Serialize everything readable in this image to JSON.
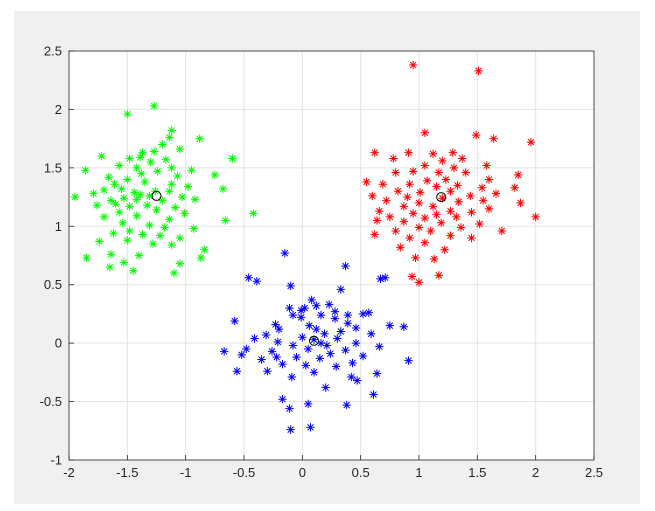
{
  "chart_data": {
    "type": "scatter",
    "title": "",
    "xlabel": "",
    "ylabel": "",
    "xlim": [
      -2,
      2.5
    ],
    "ylim": [
      -1,
      2.5
    ],
    "xticks": [
      "-2",
      "-1.5",
      "-1",
      "-0.5",
      "0",
      "0.5",
      "1",
      "1.5",
      "2",
      "2.5"
    ],
    "yticks": [
      "-1",
      "-0.5",
      "0",
      "0.5",
      "1",
      "1.5",
      "2",
      "2.5"
    ],
    "grid": true,
    "legend": "none",
    "series": [
      {
        "color": "#00ff00",
        "marker": "asterisk",
        "points": [
          [
            -1.27,
            2.03
          ],
          [
            -1.5,
            1.96
          ],
          [
            -1.12,
            1.82
          ],
          [
            -1.14,
            1.76
          ],
          [
            -0.88,
            1.75
          ],
          [
            -1.2,
            1.7
          ],
          [
            -1.05,
            1.66
          ],
          [
            -1.27,
            1.64
          ],
          [
            -1.37,
            1.63
          ],
          [
            -1.39,
            1.59
          ],
          [
            -1.72,
            1.6
          ],
          [
            -1.48,
            1.58
          ],
          [
            -1.17,
            1.57
          ],
          [
            -1.3,
            1.55
          ],
          [
            -0.6,
            1.58
          ],
          [
            -1.57,
            1.52
          ],
          [
            -1.86,
            1.48
          ],
          [
            -1.42,
            1.5
          ],
          [
            -1.12,
            1.5
          ],
          [
            -0.95,
            1.48
          ],
          [
            -1.24,
            1.47
          ],
          [
            -1.38,
            1.45
          ],
          [
            -1.07,
            1.43
          ],
          [
            -0.75,
            1.44
          ],
          [
            -1.66,
            1.42
          ],
          [
            -1.5,
            1.4
          ],
          [
            -1.61,
            1.36
          ],
          [
            -1.35,
            1.38
          ],
          [
            -1.12,
            1.36
          ],
          [
            -0.98,
            1.34
          ],
          [
            -1.55,
            1.32
          ],
          [
            -1.7,
            1.31
          ],
          [
            -1.26,
            1.3
          ],
          [
            -1.44,
            1.29
          ],
          [
            -1.14,
            1.3
          ],
          [
            -0.68,
            1.32
          ],
          [
            -1.79,
            1.28
          ],
          [
            -1.39,
            1.27
          ],
          [
            -1.31,
            1.26
          ],
          [
            -1.03,
            1.25
          ],
          [
            -1.53,
            1.24
          ],
          [
            -1.64,
            1.22
          ],
          [
            -1.42,
            1.23
          ],
          [
            -1.2,
            1.22
          ],
          [
            -0.92,
            1.23
          ],
          [
            -1.95,
            1.25
          ],
          [
            -1.76,
            1.18
          ],
          [
            -1.6,
            1.19
          ],
          [
            -1.48,
            1.17
          ],
          [
            -1.33,
            1.18
          ],
          [
            -1.09,
            1.16
          ],
          [
            -1.25,
            1.14
          ],
          [
            -1.57,
            1.12
          ],
          [
            -1.01,
            1.11
          ],
          [
            -1.42,
            1.09
          ],
          [
            -1.7,
            1.08
          ],
          [
            -1.14,
            1.06
          ],
          [
            -0.42,
            1.11
          ],
          [
            -0.66,
            1.05
          ],
          [
            -1.54,
            1.03
          ],
          [
            -1.31,
            1.01
          ],
          [
            -1.18,
            0.99
          ],
          [
            -1.48,
            0.96
          ],
          [
            -0.93,
            0.98
          ],
          [
            -1.62,
            0.94
          ],
          [
            -1.37,
            0.93
          ],
          [
            -1.22,
            0.92
          ],
          [
            -1.05,
            0.9
          ],
          [
            -1.74,
            0.87
          ],
          [
            -1.5,
            0.88
          ],
          [
            -1.28,
            0.85
          ],
          [
            -1.12,
            0.84
          ],
          [
            -0.84,
            0.8
          ],
          [
            -1.64,
            0.76
          ],
          [
            -1.4,
            0.75
          ],
          [
            -0.87,
            0.73
          ],
          [
            -1.85,
            0.73
          ],
          [
            -1.53,
            0.69
          ],
          [
            -1.65,
            0.65
          ],
          [
            -1.1,
            0.6
          ],
          [
            -1.05,
            0.68
          ],
          [
            -1.45,
            0.62
          ]
        ]
      },
      {
        "color": "#ff0000",
        "marker": "asterisk",
        "points": [
          [
            0.95,
            2.38
          ],
          [
            1.51,
            2.33
          ],
          [
            1.05,
            1.8
          ],
          [
            1.49,
            1.78
          ],
          [
            1.64,
            1.75
          ],
          [
            1.96,
            1.72
          ],
          [
            0.62,
            1.63
          ],
          [
            0.91,
            1.63
          ],
          [
            1.12,
            1.62
          ],
          [
            1.29,
            1.63
          ],
          [
            0.78,
            1.58
          ],
          [
            1.2,
            1.56
          ],
          [
            1.37,
            1.58
          ],
          [
            1.05,
            1.52
          ],
          [
            1.58,
            1.52
          ],
          [
            1.3,
            1.5
          ],
          [
            0.8,
            1.46
          ],
          [
            0.95,
            1.47
          ],
          [
            1.17,
            1.46
          ],
          [
            1.4,
            1.46
          ],
          [
            1.85,
            1.44
          ],
          [
            0.55,
            1.38
          ],
          [
            1.07,
            1.39
          ],
          [
            1.23,
            1.4
          ],
          [
            1.6,
            1.4
          ],
          [
            0.69,
            1.36
          ],
          [
            0.92,
            1.36
          ],
          [
            1.33,
            1.35
          ],
          [
            1.54,
            1.33
          ],
          [
            1.15,
            1.34
          ],
          [
            1.82,
            1.33
          ],
          [
            0.82,
            1.3
          ],
          [
            1.01,
            1.29
          ],
          [
            1.27,
            1.3
          ],
          [
            1.66,
            1.28
          ],
          [
            0.6,
            1.26
          ],
          [
            0.9,
            1.25
          ],
          [
            1.44,
            1.26
          ],
          [
            1.2,
            1.24
          ],
          [
            1.55,
            1.22
          ],
          [
            0.72,
            1.22
          ],
          [
            1.0,
            1.2
          ],
          [
            1.34,
            1.21
          ],
          [
            1.87,
            1.2
          ],
          [
            0.87,
            1.17
          ],
          [
            1.12,
            1.17
          ],
          [
            1.6,
            1.15
          ],
          [
            0.66,
            1.13
          ],
          [
            1.27,
            1.13
          ],
          [
            1.45,
            1.12
          ],
          [
            0.95,
            1.11
          ],
          [
            1.15,
            1.1
          ],
          [
            0.75,
            1.08
          ],
          [
            1.05,
            1.07
          ],
          [
            1.32,
            1.08
          ],
          [
            2.0,
            1.08
          ],
          [
            0.64,
            1.05
          ],
          [
            0.87,
            1.04
          ],
          [
            1.19,
            1.03
          ],
          [
            1.52,
            1.02
          ],
          [
            1.0,
            0.99
          ],
          [
            1.36,
            0.99
          ],
          [
            0.8,
            0.96
          ],
          [
            1.1,
            0.96
          ],
          [
            1.71,
            0.96
          ],
          [
            0.62,
            0.93
          ],
          [
            1.27,
            0.92
          ],
          [
            0.92,
            0.9
          ],
          [
            1.45,
            0.9
          ],
          [
            1.05,
            0.86
          ],
          [
            0.84,
            0.82
          ],
          [
            1.22,
            0.8
          ],
          [
            1.13,
            0.72
          ],
          [
            0.97,
            0.73
          ],
          [
            1.17,
            0.58
          ],
          [
            0.94,
            0.57
          ],
          [
            1.0,
            0.52
          ]
        ]
      },
      {
        "color": "#0000ff",
        "marker": "asterisk",
        "points": [
          [
            -0.15,
            0.77
          ],
          [
            0.37,
            0.66
          ],
          [
            0.71,
            0.56
          ],
          [
            0.67,
            0.55
          ],
          [
            -0.46,
            0.56
          ],
          [
            -0.39,
            0.53
          ],
          [
            -0.1,
            0.49
          ],
          [
            0.33,
            0.46
          ],
          [
            0.08,
            0.37
          ],
          [
            0.12,
            0.32
          ],
          [
            0.23,
            0.33
          ],
          [
            -0.11,
            0.3
          ],
          [
            0.02,
            0.3
          ],
          [
            -0.01,
            0.28
          ],
          [
            0.28,
            0.27
          ],
          [
            0.52,
            0.25
          ],
          [
            0.57,
            0.26
          ],
          [
            -0.08,
            0.24
          ],
          [
            0.16,
            0.24
          ],
          [
            0.39,
            0.24
          ],
          [
            -0.58,
            0.19
          ],
          [
            -0.01,
            0.22
          ],
          [
            0.28,
            0.21
          ],
          [
            -0.23,
            0.16
          ],
          [
            0.06,
            0.15
          ],
          [
            0.39,
            0.17
          ],
          [
            0.75,
            0.15
          ],
          [
            0.87,
            0.14
          ],
          [
            -0.2,
            0.12
          ],
          [
            0.12,
            0.12
          ],
          [
            0.46,
            0.13
          ],
          [
            -0.31,
            0.07
          ],
          [
            0.19,
            0.08
          ],
          [
            0.59,
            0.08
          ],
          [
            -0.41,
            0.04
          ],
          [
            0.0,
            0.05
          ],
          [
            0.3,
            0.04
          ],
          [
            0.1,
            0.03
          ],
          [
            -0.21,
            0.01
          ],
          [
            0.46,
            0.0
          ],
          [
            0.16,
            0.0
          ],
          [
            -0.08,
            -0.02
          ],
          [
            0.66,
            -0.03
          ],
          [
            -0.48,
            -0.05
          ],
          [
            0.05,
            -0.05
          ],
          [
            0.37,
            -0.06
          ],
          [
            -0.67,
            -0.07
          ],
          [
            -0.26,
            -0.07
          ],
          [
            0.24,
            -0.09
          ],
          [
            -0.52,
            -0.1
          ],
          [
            0.52,
            -0.11
          ],
          [
            -0.05,
            -0.12
          ],
          [
            0.15,
            -0.13
          ],
          [
            -0.35,
            -0.14
          ],
          [
            0.91,
            -0.15
          ],
          [
            0.43,
            -0.17
          ],
          [
            -0.17,
            -0.18
          ],
          [
            0.03,
            -0.19
          ],
          [
            0.29,
            -0.2
          ],
          [
            -0.3,
            -0.24
          ],
          [
            -0.56,
            -0.24
          ],
          [
            0.1,
            -0.25
          ],
          [
            0.64,
            -0.26
          ],
          [
            -0.09,
            -0.29
          ],
          [
            0.42,
            -0.29
          ],
          [
            0.2,
            -0.38
          ],
          [
            0.47,
            -0.32
          ],
          [
            -0.17,
            -0.48
          ],
          [
            0.05,
            -0.52
          ],
          [
            0.38,
            -0.53
          ],
          [
            0.61,
            -0.44
          ],
          [
            -0.11,
            -0.56
          ],
          [
            0.07,
            -0.72
          ],
          [
            -0.1,
            -0.74
          ],
          [
            -0.22,
            -0.12
          ],
          [
            0.33,
            0.1
          ],
          [
            0.21,
            -0.02
          ]
        ]
      }
    ],
    "centroids": {
      "color": "#000000",
      "marker": "circle",
      "points": [
        [
          -1.25,
          1.26
        ],
        [
          1.19,
          1.25
        ],
        [
          0.1,
          0.02
        ]
      ]
    }
  }
}
